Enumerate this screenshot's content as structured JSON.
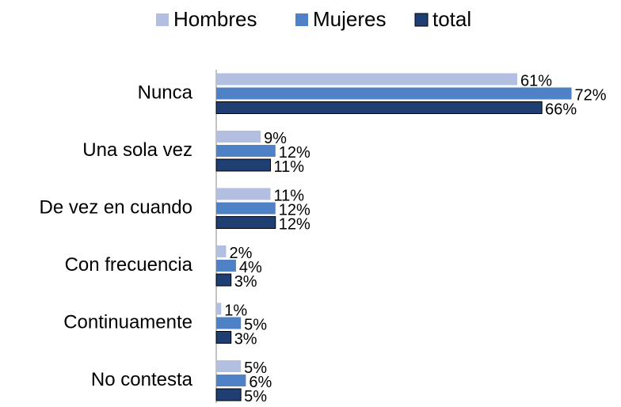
{
  "chart_data": {
    "type": "hbar",
    "categories": [
      "Nunca",
      "Una sola vez",
      "De vez en cuando",
      "Con frecuencia",
      "Continuamente",
      "No contesta"
    ],
    "series": [
      {
        "name": "Hombres",
        "color": "#b3bfe0",
        "values": [
          61,
          9,
          11,
          2,
          1,
          5
        ],
        "value_labels": [
          "61%",
          "9%",
          "11%",
          "2%",
          "1%",
          "5%"
        ]
      },
      {
        "name": "Mujeres",
        "color": "#4f81c6",
        "values": [
          72,
          12,
          12,
          4,
          5,
          6
        ],
        "value_labels": [
          "72%",
          "12%",
          "12%",
          "4%",
          "5%",
          "6%"
        ]
      },
      {
        "name": "total",
        "color": "#1f3f73",
        "values": [
          66,
          11,
          12,
          3,
          3,
          5
        ],
        "value_labels": [
          "66%",
          "11%",
          "12%",
          "3%",
          "3%",
          "5%"
        ]
      }
    ],
    "legend": "top"
  }
}
